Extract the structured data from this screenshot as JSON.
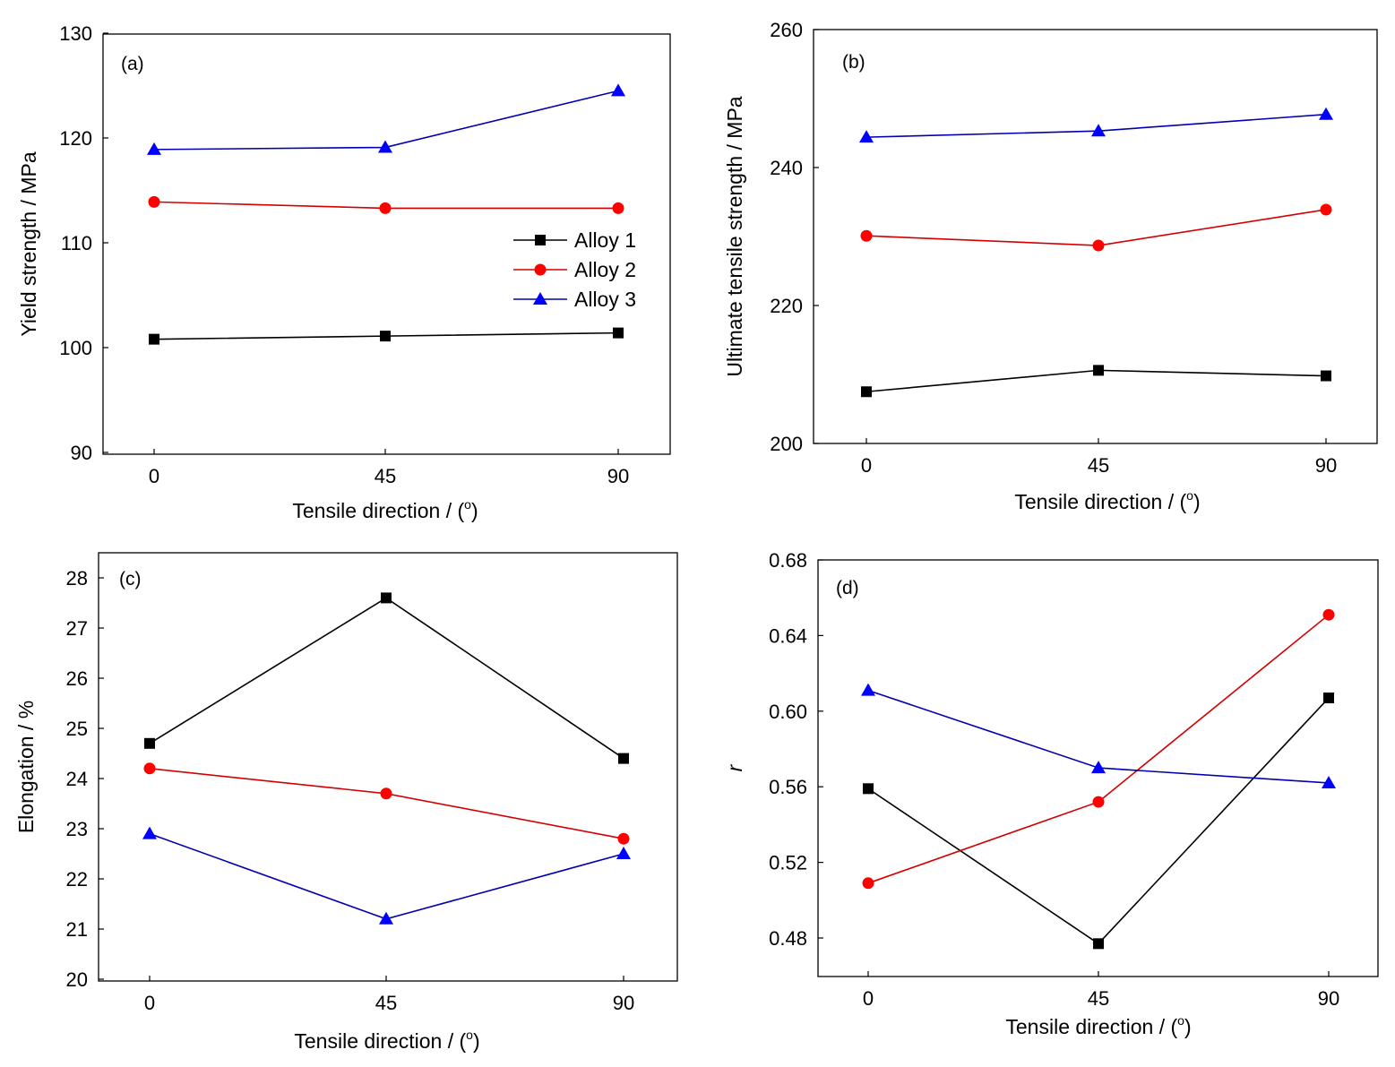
{
  "chart_data": [
    {
      "type": "line",
      "panel_label": "(a)",
      "xlabel": "Tensile direction / (",
      "xlabel_sup": "o",
      "xlabel_end": ")",
      "ylabel": "Yield strength / MPa",
      "x": [
        0,
        45,
        90
      ],
      "x_ticks": [
        "0",
        "45",
        "90"
      ],
      "xlim": [
        -10,
        102
      ],
      "ylim": [
        90,
        130
      ],
      "y_ticks": [
        "90",
        "100",
        "110",
        "120",
        "130"
      ],
      "legend": {
        "placement": "center-right",
        "entries": [
          "Alloy 1",
          "Alloy 2",
          "Alloy 3"
        ]
      },
      "series": [
        {
          "name": "Alloy 1",
          "marker": "square",
          "values": [
            100.8,
            101.1,
            101.4
          ]
        },
        {
          "name": "Alloy 2",
          "marker": "circle",
          "values": [
            113.9,
            113.3,
            113.3
          ]
        },
        {
          "name": "Alloy 3",
          "marker": "triangle",
          "values": [
            118.9,
            119.1,
            124.5
          ]
        }
      ]
    },
    {
      "type": "line",
      "panel_label": "(b)",
      "xlabel": "Tensile direction / (",
      "xlabel_sup": "o",
      "xlabel_end": ")",
      "ylabel": "Ultimate tensile strength / MPa",
      "x": [
        0,
        45,
        90
      ],
      "x_ticks": [
        "0",
        "45",
        "90"
      ],
      "xlim": [
        -10,
        100
      ],
      "ylim": [
        200,
        260
      ],
      "y_ticks": [
        "200",
        "220",
        "240",
        "260"
      ],
      "series": [
        {
          "name": "Alloy 1",
          "marker": "square",
          "values": [
            207.5,
            210.6,
            209.8
          ]
        },
        {
          "name": "Alloy 2",
          "marker": "circle",
          "values": [
            230.1,
            228.7,
            233.9
          ]
        },
        {
          "name": "Alloy 3",
          "marker": "triangle",
          "values": [
            244.4,
            245.3,
            247.7
          ]
        }
      ]
    },
    {
      "type": "line",
      "panel_label": "(c)",
      "xlabel": "Tensile direction / (",
      "xlabel_sup": "o",
      "xlabel_end": ")",
      "ylabel": "Elongation / %",
      "x": [
        0,
        45,
        90
      ],
      "x_ticks": [
        "0",
        "45",
        "90"
      ],
      "xlim": [
        -10,
        100
      ],
      "ylim": [
        20,
        28.5
      ],
      "y_ticks": [
        "20",
        "21",
        "22",
        "23",
        "24",
        "25",
        "26",
        "27",
        "28"
      ],
      "series": [
        {
          "name": "Alloy 1",
          "marker": "square",
          "values": [
            24.7,
            27.6,
            24.4
          ]
        },
        {
          "name": "Alloy 2",
          "marker": "circle",
          "values": [
            24.2,
            23.7,
            22.8
          ]
        },
        {
          "name": "Alloy 3",
          "marker": "triangle",
          "values": [
            22.9,
            21.2,
            22.5
          ]
        }
      ]
    },
    {
      "type": "line",
      "panel_label": "(d)",
      "xlabel": "Tensile direction / (",
      "xlabel_sup": "o",
      "xlabel_end": ")",
      "ylabel": "r",
      "x": [
        0,
        45,
        90
      ],
      "x_ticks": [
        "0",
        "45",
        "90"
      ],
      "xlim": [
        -10,
        100
      ],
      "ylim": [
        0.46,
        0.68
      ],
      "y_ticks": [
        "0.48",
        "0.52",
        "0.56",
        "0.60",
        "0.64",
        "0.68"
      ],
      "series": [
        {
          "name": "Alloy 1",
          "marker": "square",
          "values": [
            0.559,
            0.477,
            0.607
          ]
        },
        {
          "name": "Alloy 2",
          "marker": "circle",
          "values": [
            0.509,
            0.552,
            0.651
          ]
        },
        {
          "name": "Alloy 3",
          "marker": "triangle",
          "values": [
            0.611,
            0.57,
            0.562
          ]
        }
      ]
    }
  ],
  "colors": {
    "Alloy 1": {
      "line": "#000000",
      "marker": "#000000"
    },
    "Alloy 2": {
      "line": "#d40000",
      "marker": "#ff0000"
    },
    "Alloy 3": {
      "line": "#0000b0",
      "marker": "#0000ff"
    }
  }
}
